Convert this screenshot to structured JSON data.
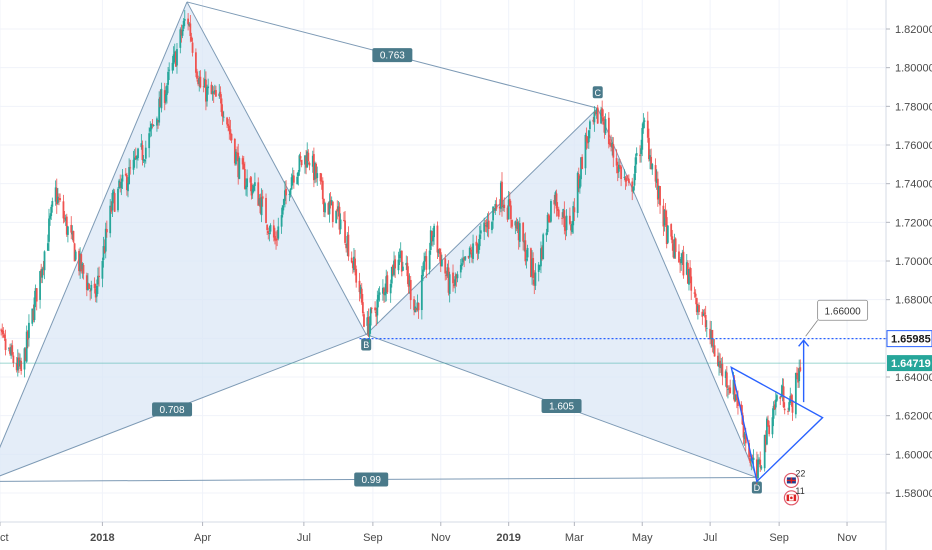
{
  "chart_data": {
    "type": "candlestick",
    "price_range": [
      1.565,
      1.835
    ],
    "x_range": [
      "2017-10-01",
      "2019-12-06"
    ],
    "x_ticks": [
      {
        "date": "2017-10-01",
        "label": "Oct",
        "bold": false
      },
      {
        "date": "2018-01-01",
        "label": "2018",
        "bold": true
      },
      {
        "date": "2018-04-01",
        "label": "Apr",
        "bold": false
      },
      {
        "date": "2018-07-01",
        "label": "Jul",
        "bold": false
      },
      {
        "date": "2018-09-01",
        "label": "Sep",
        "bold": false
      },
      {
        "date": "2018-11-01",
        "label": "Nov",
        "bold": false
      },
      {
        "date": "2019-01-01",
        "label": "2019",
        "bold": true
      },
      {
        "date": "2019-03-01",
        "label": "Mar",
        "bold": false
      },
      {
        "date": "2019-05-01",
        "label": "May",
        "bold": false
      },
      {
        "date": "2019-07-01",
        "label": "Jul",
        "bold": false
      },
      {
        "date": "2019-09-01",
        "label": "Sep",
        "bold": false
      },
      {
        "date": "2019-11-01",
        "label": "Nov",
        "bold": false
      }
    ],
    "y_ticks": [
      "1.82000",
      "1.80000",
      "1.78000",
      "1.76000",
      "1.74000",
      "1.72000",
      "1.70000",
      "1.68000",
      "1.66000",
      "1.64000",
      "1.62000",
      "1.60000",
      "1.58000"
    ],
    "price_path": [
      [
        "2017-09-25",
        1.665
      ],
      [
        "2017-10-20",
        1.642
      ],
      [
        "2017-11-05",
        1.69
      ],
      [
        "2017-11-20",
        1.735
      ],
      [
        "2017-12-10",
        1.7
      ],
      [
        "2017-12-25",
        1.68
      ],
      [
        "2018-01-10",
        1.73
      ],
      [
        "2018-02-10",
        1.76
      ],
      [
        "2018-03-05",
        1.8
      ],
      [
        "2018-03-18",
        1.828
      ],
      [
        "2018-03-30",
        1.79
      ],
      [
        "2018-04-20",
        1.78
      ],
      [
        "2018-05-05",
        1.745
      ],
      [
        "2018-05-20",
        1.735
      ],
      [
        "2018-06-05",
        1.71
      ],
      [
        "2018-06-20",
        1.745
      ],
      [
        "2018-07-05",
        1.755
      ],
      [
        "2018-07-20",
        1.73
      ],
      [
        "2018-08-05",
        1.72
      ],
      [
        "2018-08-20",
        1.685
      ],
      [
        "2018-08-26",
        1.664
      ],
      [
        "2018-09-10",
        1.685
      ],
      [
        "2018-09-25",
        1.705
      ],
      [
        "2018-10-10",
        1.675
      ],
      [
        "2018-10-25",
        1.715
      ],
      [
        "2018-11-10",
        1.685
      ],
      [
        "2018-11-25",
        1.7
      ],
      [
        "2018-12-10",
        1.715
      ],
      [
        "2018-12-25",
        1.735
      ],
      [
        "2019-01-10",
        1.715
      ],
      [
        "2019-01-25",
        1.69
      ],
      [
        "2019-02-10",
        1.735
      ],
      [
        "2019-02-25",
        1.715
      ],
      [
        "2019-03-10",
        1.76
      ],
      [
        "2019-03-25",
        1.778
      ],
      [
        "2019-04-05",
        1.755
      ],
      [
        "2019-04-20",
        1.735
      ],
      [
        "2019-05-03",
        1.77
      ],
      [
        "2019-05-15",
        1.735
      ],
      [
        "2019-05-25",
        1.71
      ],
      [
        "2019-06-10",
        1.695
      ],
      [
        "2019-06-25",
        1.67
      ],
      [
        "2019-07-10",
        1.645
      ],
      [
        "2019-07-25",
        1.63
      ],
      [
        "2019-08-05",
        1.6
      ],
      [
        "2019-08-12",
        1.588
      ],
      [
        "2019-08-22",
        1.615
      ],
      [
        "2019-09-01",
        1.632
      ],
      [
        "2019-09-12",
        1.625
      ],
      [
        "2019-09-20",
        1.647
      ]
    ],
    "harmonic_pattern": {
      "points": [
        {
          "name": "X",
          "date": "2017-09-18",
          "price": 1.586
        },
        {
          "name": "A",
          "date": "2018-03-18",
          "price": 1.834
        },
        {
          "name": "B",
          "date": "2018-08-26",
          "price": 1.662
        },
        {
          "name": "C",
          "date": "2019-03-22",
          "price": 1.779
        },
        {
          "name": "D",
          "date": "2019-08-12",
          "price": 1.588
        }
      ],
      "labeled_points": [
        "B",
        "C",
        "D"
      ],
      "ratios": [
        {
          "from": "X",
          "to": "B",
          "value": "0.708"
        },
        {
          "from": "A",
          "to": "C",
          "value": "0.763"
        },
        {
          "from": "B",
          "to": "D",
          "value": "1.605"
        },
        {
          "from": "X",
          "to": "D",
          "value": "0.99"
        }
      ],
      "fill_color": "#dbe7f5",
      "line_color": "#7d9ab5"
    },
    "triangle": [
      {
        "date": "2019-07-20",
        "price": 1.645
      },
      {
        "date": "2019-10-10",
        "price": 1.619
      },
      {
        "date": "2019-08-12",
        "price": 1.586
      }
    ],
    "target": {
      "label": "1.66000",
      "arrow_from": 1.627,
      "arrow_to": 1.659,
      "arrow_date": "2019-09-23"
    },
    "horizontal_line": {
      "price": 1.65985,
      "label": "1.65985",
      "color": "#2962ff"
    },
    "current_price": {
      "price": 1.64719,
      "label": "1.64719",
      "color": "#26a69a"
    },
    "events": [
      {
        "count": "22",
        "flag": "UK",
        "price": 1.5865
      },
      {
        "count": "11",
        "flag": "Canada",
        "price": 1.5775
      }
    ],
    "colors": {
      "up": "#26a69a",
      "down": "#ef5350",
      "grid": "#f0f3fa",
      "axis_text": "#4a4a4a"
    }
  }
}
